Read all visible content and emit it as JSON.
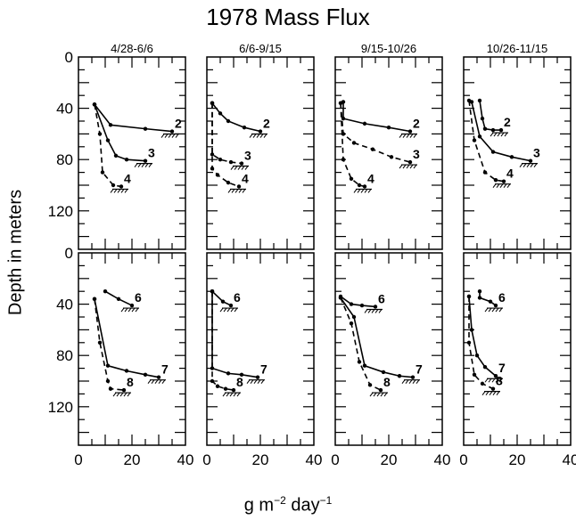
{
  "figure": {
    "title": "1978 Mass Flux",
    "ylabel": "Depth in meters",
    "xlabel_base": "g m",
    "xlabel_exp1": "−2",
    "xlabel_mid": " day",
    "xlabel_exp2": "−1"
  },
  "chart_data": {
    "type": "line",
    "title": "1978 Mass Flux",
    "xlabel": "g m−2 day−1",
    "ylabel": "Depth in meters",
    "xlim": [
      0,
      40
    ],
    "ylim": [
      150,
      0
    ],
    "x_ticks": [
      "0",
      "20",
      "40"
    ],
    "y_ticks": [
      "0",
      "40",
      "80",
      "120"
    ],
    "x_ticks_last_column": [
      "0",
      "20",
      "40"
    ],
    "panels": [
      {
        "row": 0,
        "col": 0,
        "period": "4/28-6/6",
        "series": [
          {
            "name": "2",
            "style": "solid",
            "points": [
              [
                6,
                37
              ],
              [
                12,
                53
              ],
              [
                25,
                56
              ],
              [
                35,
                58
              ]
            ]
          },
          {
            "name": "3",
            "style": "solid",
            "points": [
              [
                6,
                37
              ],
              [
                11,
                65
              ],
              [
                14,
                77
              ],
              [
                18,
                80
              ],
              [
                25,
                81
              ]
            ]
          },
          {
            "name": "4",
            "style": "dashed",
            "points": [
              [
                6,
                37
              ],
              [
                8,
                60
              ],
              [
                9,
                90
              ],
              [
                13,
                100
              ],
              [
                16,
                101
              ]
            ]
          }
        ]
      },
      {
        "row": 0,
        "col": 1,
        "period": "6/6-9/15",
        "series": [
          {
            "name": "2",
            "style": "solid",
            "points": [
              [
                2,
                36
              ],
              [
                5,
                44
              ],
              [
                8,
                50
              ],
              [
                14,
                55
              ],
              [
                20,
                58
              ]
            ]
          },
          {
            "name": "3",
            "style": "dashed",
            "points": [
              [
                2,
                36
              ],
              [
                2,
                76
              ],
              [
                5,
                80
              ],
              [
                9,
                82
              ],
              [
                13,
                83
              ]
            ]
          },
          {
            "name": "4",
            "style": "dashed",
            "points": [
              [
                2,
                36
              ],
              [
                2,
                87
              ],
              [
                4,
                92
              ],
              [
                8,
                98
              ],
              [
                12,
                101
              ]
            ]
          }
        ]
      },
      {
        "row": 0,
        "col": 2,
        "period": "9/15-10/26",
        "series": [
          {
            "name": "2",
            "style": "solid",
            "points": [
              [
                3,
                35
              ],
              [
                3,
                48
              ],
              [
                11,
                52
              ],
              [
                20,
                55
              ],
              [
                28,
                58
              ]
            ]
          },
          {
            "name": "3",
            "style": "dashed",
            "points": [
              [
                2,
                36
              ],
              [
                3,
                60
              ],
              [
                7,
                67
              ],
              [
                14,
                72
              ],
              [
                21,
                78
              ],
              [
                28,
                82
              ]
            ]
          },
          {
            "name": "4",
            "style": "dashed",
            "points": [
              [
                2,
                36
              ],
              [
                3,
                80
              ],
              [
                6,
                95
              ],
              [
                9,
                100
              ],
              [
                11,
                101
              ]
            ]
          }
        ]
      },
      {
        "row": 0,
        "col": 3,
        "period": "10/26-11/15",
        "series": [
          {
            "name": "2",
            "style": "solid",
            "points": [
              [
                6,
                34
              ],
              [
                7,
                48
              ],
              [
                8,
                56
              ],
              [
                11,
                57
              ],
              [
                14,
                57
              ]
            ]
          },
          {
            "name": "3",
            "style": "solid",
            "points": [
              [
                3,
                35
              ],
              [
                6,
                62
              ],
              [
                11,
                74
              ],
              [
                18,
                78
              ],
              [
                25,
                81
              ]
            ]
          },
          {
            "name": "4",
            "style": "dashed",
            "points": [
              [
                2,
                34
              ],
              [
                4,
                65
              ],
              [
                8,
                90
              ],
              [
                12,
                96
              ],
              [
                15,
                97
              ]
            ]
          }
        ]
      },
      {
        "row": 1,
        "col": 0,
        "period": "",
        "series": [
          {
            "name": "6",
            "style": "solid",
            "points": [
              [
                10,
                30
              ],
              [
                15,
                36
              ],
              [
                20,
                41
              ]
            ]
          },
          {
            "name": "7",
            "style": "solid",
            "points": [
              [
                6,
                36
              ],
              [
                11,
                88
              ],
              [
                18,
                92
              ],
              [
                25,
                95
              ],
              [
                30,
                97
              ]
            ]
          },
          {
            "name": "8",
            "style": "dashed",
            "points": [
              [
                6,
                36
              ],
              [
                8,
                70
              ],
              [
                11,
                100
              ],
              [
                12,
                106
              ],
              [
                17,
                107
              ]
            ]
          }
        ]
      },
      {
        "row": 1,
        "col": 1,
        "period": "",
        "series": [
          {
            "name": "6",
            "style": "solid",
            "points": [
              [
                2,
                30
              ],
              [
                6,
                38
              ],
              [
                9,
                41
              ]
            ]
          },
          {
            "name": "7",
            "style": "solid",
            "points": [
              [
                2,
                30
              ],
              [
                2,
                90
              ],
              [
                8,
                94
              ],
              [
                13,
                95
              ],
              [
                19,
                97
              ]
            ]
          },
          {
            "name": "8",
            "style": "dashed",
            "points": [
              [
                2,
                30
              ],
              [
                2,
                100
              ],
              [
                4,
                104
              ],
              [
                7,
                106
              ],
              [
                10,
                107
              ]
            ]
          }
        ]
      },
      {
        "row": 1,
        "col": 2,
        "period": "",
        "series": [
          {
            "name": "6",
            "style": "solid",
            "points": [
              [
                2,
                34
              ],
              [
                6,
                40
              ],
              [
                10,
                41
              ],
              [
                15,
                42
              ]
            ]
          },
          {
            "name": "7",
            "style": "solid",
            "points": [
              [
                2,
                35
              ],
              [
                7,
                50
              ],
              [
                11,
                88
              ],
              [
                18,
                93
              ],
              [
                24,
                96
              ],
              [
                29,
                97
              ]
            ]
          },
          {
            "name": "8",
            "style": "dashed",
            "points": [
              [
                2,
                35
              ],
              [
                6,
                55
              ],
              [
                9,
                85
              ],
              [
                13,
                103
              ],
              [
                17,
                107
              ]
            ]
          }
        ]
      },
      {
        "row": 1,
        "col": 3,
        "period": "",
        "series": [
          {
            "name": "6",
            "style": "solid",
            "points": [
              [
                6,
                30
              ],
              [
                6,
                35
              ],
              [
                10,
                38
              ],
              [
                12,
                41
              ]
            ]
          },
          {
            "name": "7",
            "style": "solid",
            "points": [
              [
                2,
                34
              ],
              [
                3,
                60
              ],
              [
                5,
                80
              ],
              [
                8,
                89
              ],
              [
                12,
                96
              ]
            ]
          },
          {
            "name": "8",
            "style": "dashed",
            "points": [
              [
                2,
                34
              ],
              [
                2,
                70
              ],
              [
                4,
                95
              ],
              [
                7,
                102
              ],
              [
                11,
                106
              ]
            ]
          }
        ]
      }
    ]
  }
}
